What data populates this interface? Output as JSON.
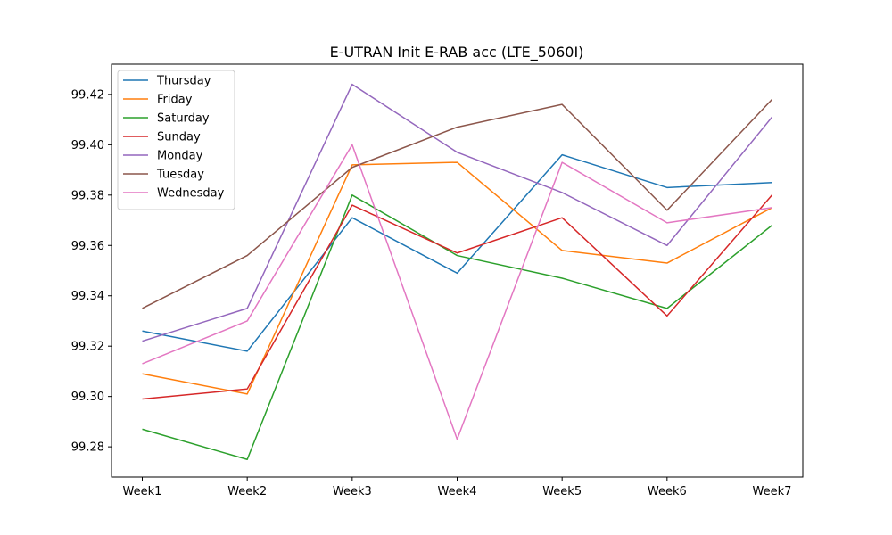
{
  "chart_data": {
    "type": "line",
    "title": "E-UTRAN Init E-RAB acc (LTE_5060I)",
    "xlabel": "",
    "ylabel": "",
    "categories": [
      "Week1",
      "Week2",
      "Week3",
      "Week4",
      "Week5",
      "Week6",
      "Week7"
    ],
    "ylim": [
      99.268,
      99.432
    ],
    "yticks": [
      99.28,
      99.3,
      99.32,
      99.34,
      99.36,
      99.38,
      99.4,
      99.42
    ],
    "ytick_labels": [
      "99.28",
      "99.30",
      "99.32",
      "99.34",
      "99.36",
      "99.38",
      "99.40",
      "99.42"
    ],
    "grid": false,
    "legend_position": "top-left",
    "series": [
      {
        "name": "Thursday",
        "color": "#1f77b4",
        "values": [
          99.326,
          99.318,
          99.371,
          99.349,
          99.396,
          99.383,
          99.385
        ]
      },
      {
        "name": "Friday",
        "color": "#ff7f0e",
        "values": [
          99.309,
          99.301,
          99.392,
          99.393,
          99.358,
          99.353,
          99.375
        ]
      },
      {
        "name": "Saturday",
        "color": "#2ca02c",
        "values": [
          99.287,
          99.275,
          99.38,
          99.356,
          99.347,
          99.335,
          99.368
        ]
      },
      {
        "name": "Sunday",
        "color": "#d62728",
        "values": [
          99.299,
          99.303,
          99.376,
          99.357,
          99.371,
          99.332,
          99.38
        ]
      },
      {
        "name": "Monday",
        "color": "#9467bd",
        "values": [
          99.322,
          99.335,
          99.424,
          99.397,
          99.381,
          99.36,
          99.411
        ]
      },
      {
        "name": "Tuesday",
        "color": "#8c564b",
        "values": [
          99.335,
          99.356,
          99.391,
          99.407,
          99.416,
          99.374,
          99.418
        ]
      },
      {
        "name": "Wednesday",
        "color": "#e377c2",
        "values": [
          99.313,
          99.33,
          99.4,
          99.283,
          99.393,
          99.369,
          99.375
        ]
      }
    ]
  }
}
